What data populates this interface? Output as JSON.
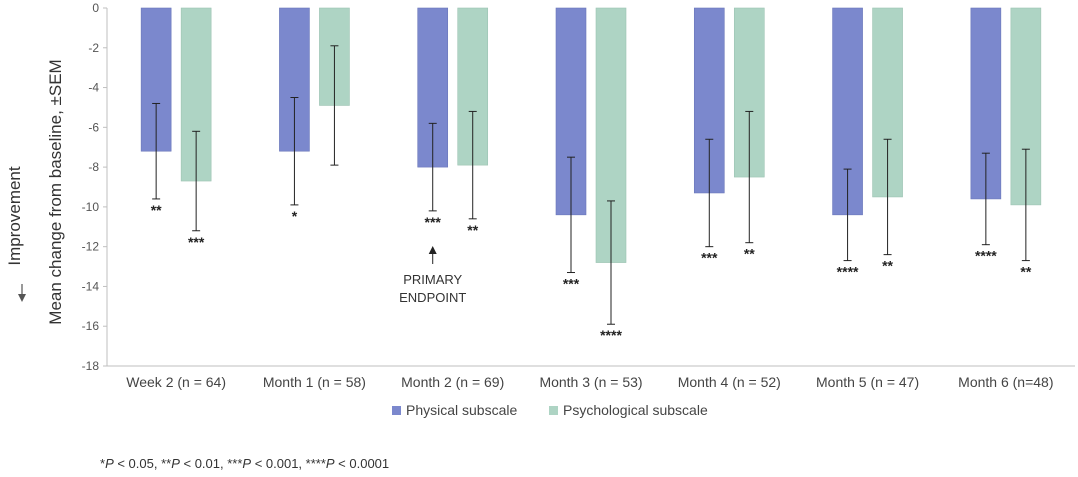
{
  "chart_data": {
    "type": "bar",
    "categories": [
      "Week 2 (n = 64)",
      "Month 1 (n = 58)",
      "Month 2 (n = 69)",
      "Month 3 (n = 53)",
      "Month 4 (n = 52)",
      "Month 5 (n = 47)",
      "Month 6 (n=48)"
    ],
    "series": [
      {
        "name": "Physical subscale",
        "color": "#7b88cd",
        "values": [
          -7.2,
          -7.2,
          -8.0,
          -10.4,
          -9.3,
          -10.4,
          -9.6
        ],
        "sem": [
          2.4,
          2.7,
          2.2,
          2.9,
          2.7,
          2.3,
          2.3
        ],
        "significance": [
          "**",
          "*",
          "***",
          "***",
          "***",
          "****",
          "****"
        ]
      },
      {
        "name": "Psychological subscale",
        "color": "#aed4c4",
        "values": [
          -8.7,
          -4.9,
          -7.9,
          -12.8,
          -8.5,
          -9.5,
          -9.9
        ],
        "sem": [
          2.5,
          3.0,
          2.7,
          3.1,
          3.3,
          2.9,
          2.8
        ],
        "significance": [
          "***",
          "",
          "**",
          "****",
          "**",
          "**",
          "**"
        ]
      }
    ],
    "ylabel": "Mean change from baseline, ±SEM",
    "direction_label": "Improvement",
    "ylim": [
      -18,
      0
    ],
    "yticks": [
      0,
      -2,
      -4,
      -6,
      -8,
      -10,
      -12,
      -14,
      -16,
      -18
    ],
    "legend_position": "bottom",
    "annotation": {
      "category_index": 2,
      "lines": [
        "PRIMARY",
        "ENDPOINT"
      ]
    },
    "footnote": [
      {
        "text": "*",
        "italic": false
      },
      {
        "text": "P",
        "italic": true
      },
      {
        "text": " < 0.05, **",
        "italic": false
      },
      {
        "text": "P",
        "italic": true
      },
      {
        "text": " < 0.01, ***",
        "italic": false
      },
      {
        "text": "P",
        "italic": true
      },
      {
        "text": " < 0.001, ****",
        "italic": false
      },
      {
        "text": "P",
        "italic": true
      },
      {
        "text": " < 0.0001",
        "italic": false
      }
    ]
  }
}
